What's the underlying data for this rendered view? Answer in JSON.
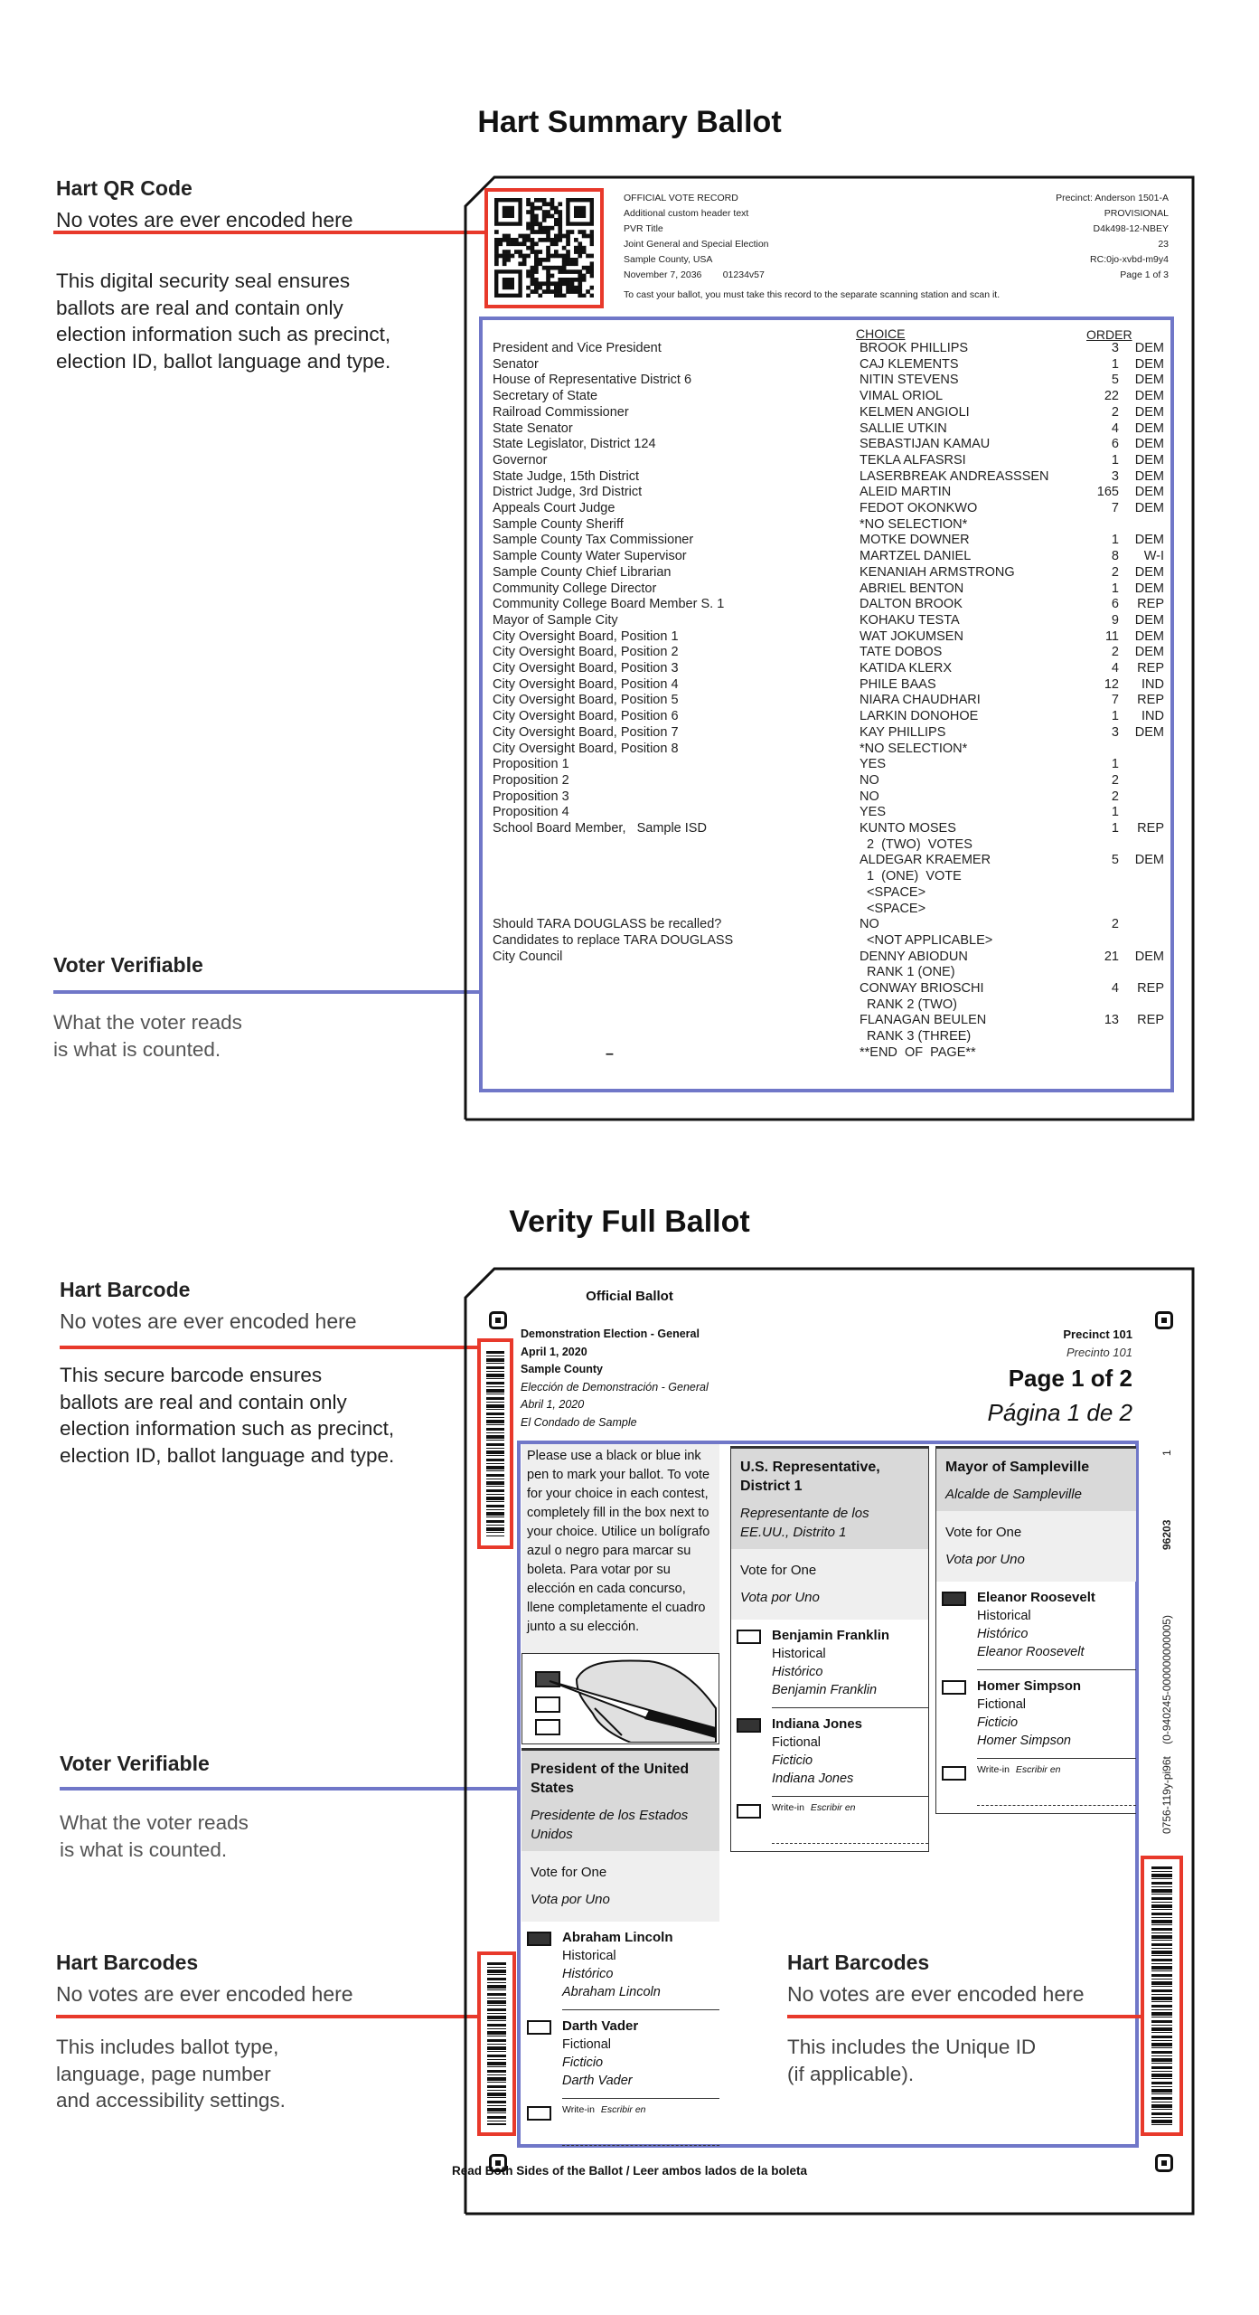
{
  "summary": {
    "title": "Hart Summary Ballot",
    "annotations": {
      "qr_title": "Hart QR Code",
      "qr_sub": "No votes are ever encoded here",
      "qr_desc": "This digital security seal ensures\nballots are real and contain only\nelection information such as precinct,\nelection ID, ballot language and type.",
      "vv_title": "Voter Verifiable",
      "vv_desc": "What the voter reads\nis what is counted."
    },
    "header_left": [
      "OFFICIAL VOTE RECORD",
      "Additional custom header text",
      "PVR Title",
      "Joint General and Special Election",
      "Sample County, USA",
      "November 7, 2036        01234v57"
    ],
    "header_right": [
      "Precinct: Anderson 1501-A",
      "PROVISIONAL",
      "D4k498-12-NBEY",
      "23",
      "RC:0jo-xvbd-m9y4",
      "Page 1 of 3"
    ],
    "instruction": "To cast your ballot, you must take this record to the separate scanning station and scan it.",
    "col_choice": "CHOICE",
    "col_order": "ORDER",
    "end_mark": "–",
    "rows": [
      {
        "contest": "President and Vice President",
        "choice": "BROOK PHILLIPS",
        "order": "3",
        "party": "DEM"
      },
      {
        "contest": "Senator",
        "choice": "CAJ KLEMENTS",
        "order": "1",
        "party": "DEM"
      },
      {
        "contest": "House of Representative District 6",
        "choice": "NITIN STEVENS",
        "order": "5",
        "party": "DEM"
      },
      {
        "contest": "Secretary of State",
        "choice": "VIMAL ORIOL",
        "order": "22",
        "party": "DEM"
      },
      {
        "contest": "Railroad Commissioner",
        "choice": "KELMEN ANGIOLI",
        "order": "2",
        "party": "DEM"
      },
      {
        "contest": "State Senator",
        "choice": "SALLIE UTKIN",
        "order": "4",
        "party": "DEM"
      },
      {
        "contest": "State Legislator, District 124",
        "choice": "SEBASTIJAN KAMAU",
        "order": "6",
        "party": "DEM"
      },
      {
        "contest": "Governor",
        "choice": "TEKLA ALFASRSI",
        "order": "1",
        "party": "DEM"
      },
      {
        "contest": "State Judge, 15th District",
        "choice": "LASERBREAK ANDREASSSEN",
        "order": "3",
        "party": "DEM"
      },
      {
        "contest": "District Judge, 3rd District",
        "choice": "ALEID MARTIN",
        "order": "165",
        "party": "DEM"
      },
      {
        "contest": "Appeals Court Judge",
        "choice": "FEDOT OKONKWO",
        "order": "7",
        "party": "DEM"
      },
      {
        "contest": "Sample County Sheriff",
        "choice": "*NO SELECTION*",
        "order": "",
        "party": ""
      },
      {
        "contest": "Sample County Tax Commissioner",
        "choice": "MOTKE DOWNER",
        "order": "1",
        "party": "DEM"
      },
      {
        "contest": "Sample County Water Supervisor",
        "choice": "MARTZEL DANIEL",
        "order": "8",
        "party": "W-I"
      },
      {
        "contest": "Sample County Chief Librarian",
        "choice": "KENANIAH ARMSTRONG",
        "order": "2",
        "party": "DEM"
      },
      {
        "contest": "Community College Director",
        "choice": "ABRIEL BENTON",
        "order": "1",
        "party": "DEM"
      },
      {
        "contest": "Community College Board Member S. 1",
        "choice": "DALTON BROOK",
        "order": "6",
        "party": "REP"
      },
      {
        "contest": "Mayor of Sample City",
        "choice": "KOHAKU TESTA",
        "order": "9",
        "party": "DEM"
      },
      {
        "contest": "City Oversight Board, Position 1",
        "choice": "WAT JOKUMSEN",
        "order": "11",
        "party": "DEM"
      },
      {
        "contest": "City Oversight Board, Position 2",
        "choice": "TATE DOBOS",
        "order": "2",
        "party": "DEM"
      },
      {
        "contest": "City Oversight Board, Position 3",
        "choice": "KATIDA KLERX",
        "order": "4",
        "party": "REP"
      },
      {
        "contest": "City Oversight Board, Position 4",
        "choice": "PHILE BAAS",
        "order": "12",
        "party": "IND"
      },
      {
        "contest": "City Oversight Board, Position 5",
        "choice": "NIARA CHAUDHARI",
        "order": "7",
        "party": "REP"
      },
      {
        "contest": "City Oversight Board, Position 6",
        "choice": "LARKIN DONOHOE",
        "order": "1",
        "party": "IND"
      },
      {
        "contest": "City Oversight Board, Position 7",
        "choice": "KAY PHILLIPS",
        "order": "3",
        "party": "DEM"
      },
      {
        "contest": "City Oversight Board, Position 8",
        "choice": "*NO SELECTION*",
        "order": "",
        "party": ""
      },
      {
        "contest": "Proposition 1",
        "choice": "YES",
        "order": "1",
        "party": ""
      },
      {
        "contest": "Proposition 2",
        "choice": "NO",
        "order": "2",
        "party": ""
      },
      {
        "contest": "Proposition 3",
        "choice": "NO",
        "order": "2",
        "party": ""
      },
      {
        "contest": "Proposition 4",
        "choice": "YES",
        "order": "1",
        "party": ""
      },
      {
        "contest": "School Board Member,   Sample ISD",
        "choice": "KUNTO MOSES",
        "order": "1",
        "party": "REP"
      },
      {
        "contest": "",
        "choice": "  2  (TWO)  VOTES",
        "order": "",
        "party": ""
      },
      {
        "contest": "",
        "choice": "ALDEGAR KRAEMER",
        "order": "5",
        "party": "DEM"
      },
      {
        "contest": "",
        "choice": "  1  (ONE)  VOTE",
        "order": "",
        "party": ""
      },
      {
        "contest": "",
        "choice": "  <SPACE>",
        "order": "",
        "party": ""
      },
      {
        "contest": "",
        "choice": "  <SPACE>",
        "order": "",
        "party": ""
      },
      {
        "contest": "Should TARA DOUGLASS be recalled?",
        "choice": "NO",
        "order": "2",
        "party": ""
      },
      {
        "contest": "Candidates to replace TARA DOUGLASS",
        "choice": "  <NOT APPLICABLE>",
        "order": "",
        "party": ""
      },
      {
        "contest": "City Council",
        "choice": "DENNY ABIODUN",
        "order": "21",
        "party": "DEM"
      },
      {
        "contest": "",
        "choice": "  RANK 1 (ONE)",
        "order": "",
        "party": ""
      },
      {
        "contest": "",
        "choice": "CONWAY BRIOSCHI",
        "order": "4",
        "party": "REP"
      },
      {
        "contest": "",
        "choice": "  RANK 2 (TWO)",
        "order": "",
        "party": ""
      },
      {
        "contest": "",
        "choice": "FLANAGAN BEULEN",
        "order": "13",
        "party": "REP"
      },
      {
        "contest": "",
        "choice": "  RANK 3 (THREE)",
        "order": "",
        "party": ""
      },
      {
        "contest": "",
        "choice": "**END  OF  PAGE**",
        "order": "",
        "party": ""
      }
    ]
  },
  "verity": {
    "title": "Verity Full Ballot",
    "annotations": {
      "bc_title": "Hart Barcode",
      "bc_sub": "No votes are ever encoded here",
      "bc_desc": "This secure barcode ensures\nballots are real and contain only\nelection information such as precinct,\nelection ID, ballot language and type.",
      "vv_title": "Voter Verifiable",
      "vv_desc": "What the voter reads\nis what is counted.",
      "bcs_title": "Hart Barcodes",
      "bcs_sub": "No votes are ever encoded here",
      "bcs_desc": "This includes ballot type,\nlanguage, page number\nand accessibility settings.",
      "right_title": "Hart Barcodes",
      "right_sub": "No votes are ever encoded here",
      "right_desc": "This includes the Unique ID\n(if applicable)."
    },
    "ballot_title": "Official Ballot",
    "header_left": [
      {
        "text": "Demonstration Election - General",
        "style": "bold"
      },
      {
        "text": "April 1, 2020",
        "style": "bold"
      },
      {
        "text": "Sample County",
        "style": "bold"
      },
      {
        "text": "Elección de Demonstración - General",
        "style": "italic"
      },
      {
        "text": "Abril 1, 2020",
        "style": "italic"
      },
      {
        "text": "El Condado de Sample",
        "style": "italic"
      }
    ],
    "precinct": "Precinct 101",
    "precinto": "Precinto 101",
    "page": "Page 1 of 2",
    "pagina": "Página 1 de 2",
    "side_codes": [
      "1",
      "96203",
      "0756-119y-pi96t    (0-940245-000000000005)"
    ],
    "instructions": "Please use a black or blue ink pen to mark your ballot.  To vote for your choice in each contest, completely fill in the box next to your choice. Utilice un bolígrafo azul o negro para marcar su boleta. Para votar por su elección en cada concurso, llene completamente el cuadro junto a su elección.",
    "footer": "Read Both Sides of the Ballot / Leer ambos lados de la boleta",
    "contests": [
      {
        "title": "President of the United States",
        "title_es": "Presidente de los Estados Unidos",
        "vote_for": "Vote for One",
        "vote_for_es": "Vota por Uno",
        "candidates": [
          {
            "name": "Abraham Lincoln",
            "party": "Historical",
            "party_es": "Histórico",
            "name_alt": "Abraham Lincoln",
            "selected": true
          },
          {
            "name": "Darth Vader",
            "party": "Fictional",
            "party_es": "Ficticio",
            "name_alt": "Darth Vader",
            "selected": false
          }
        ],
        "write_in": "Write-in",
        "write_in_es": "Escribir en"
      },
      {
        "title": "U.S. Representative, District 1",
        "title_es": "Representante de los EE.UU., Distrito 1",
        "vote_for": "Vote for One",
        "vote_for_es": "Vota por Uno",
        "candidates": [
          {
            "name": "Benjamin Franklin",
            "party": "Historical",
            "party_es": "Histórico",
            "name_alt": "Benjamin Franklin",
            "selected": false
          },
          {
            "name": "Indiana Jones",
            "party": "Fictional",
            "party_es": "Ficticio",
            "name_alt": "Indiana Jones",
            "selected": true
          }
        ],
        "write_in": "Write-in",
        "write_in_es": "Escribir en"
      },
      {
        "title": "Mayor of Sampleville",
        "title_es": "Alcalde de Sampleville",
        "vote_for": "Vote for One",
        "vote_for_es": "Vota por Uno",
        "candidates": [
          {
            "name": "Eleanor Roosevelt",
            "party": "Historical",
            "party_es": "Histórico",
            "name_alt": "Eleanor Roosevelt",
            "selected": true
          },
          {
            "name": "Homer Simpson",
            "party": "Fictional",
            "party_es": "Ficticio",
            "name_alt": "Homer Simpson",
            "selected": false
          }
        ],
        "write_in": "Write-in",
        "write_in_es": "Escribir en"
      }
    ]
  },
  "colors": {
    "red": "#e8392b",
    "blue": "#7077c8"
  }
}
